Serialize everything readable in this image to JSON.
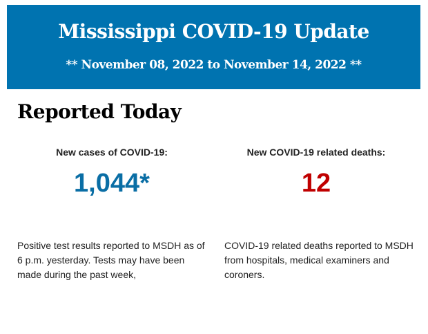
{
  "header": {
    "title": "Mississippi COVID-19 Update",
    "date_range": "** November 08, 2022 to November 14, 2022 **",
    "bg_color": "#0073b0"
  },
  "section_title": "Reported Today",
  "cases": {
    "label": "New cases of COVID-19:",
    "value": "1,044*",
    "color": "#0a6ea5",
    "description": "Positive test results reported to MSDH as of 6 p.m. yesterday. Tests may have been made during the past week,"
  },
  "deaths": {
    "label": "New COVID-19 related deaths:",
    "value": "12",
    "color": "#c00000",
    "description": "COVID-19 related deaths reported to MSDH from hospitals, medical examiners and coroners."
  }
}
